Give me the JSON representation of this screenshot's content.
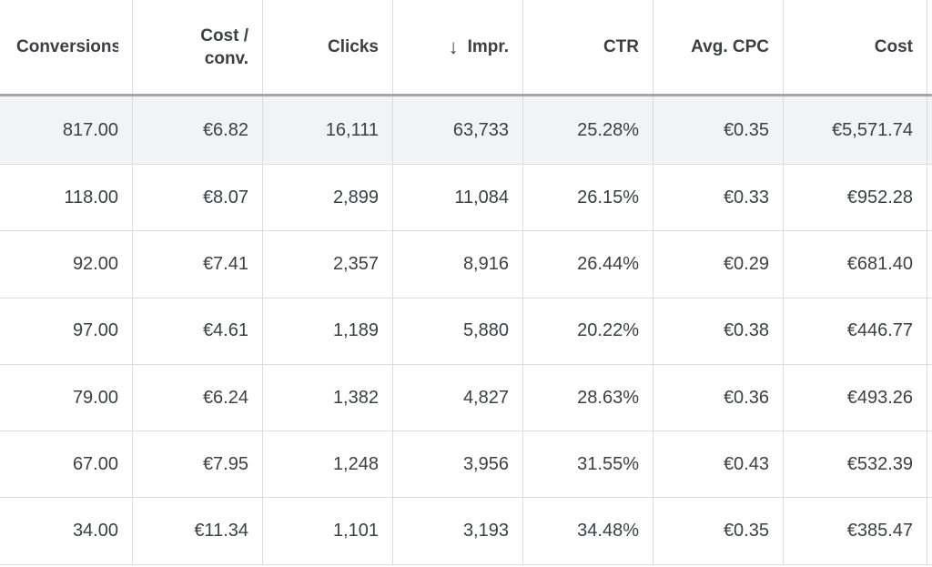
{
  "table": {
    "headers": {
      "conversions": "Conversions",
      "cost_per_conv_line1": "Cost /",
      "cost_per_conv_line2": "conv.",
      "clicks": "Clicks",
      "impr": "Impr.",
      "ctr": "CTR",
      "avg_cpc": "Avg. CPC",
      "cost": "Cost"
    },
    "sort_icon": "arrow-down-icon",
    "sort_glyph": "↓",
    "rows": [
      {
        "conversions": "817.00",
        "cost_per_conv": "€6.82",
        "clicks": "16,111",
        "impr": "63,733",
        "ctr": "25.28%",
        "avg_cpc": "€0.35",
        "cost": "€5,571.74"
      },
      {
        "conversions": "118.00",
        "cost_per_conv": "€8.07",
        "clicks": "2,899",
        "impr": "11,084",
        "ctr": "26.15%",
        "avg_cpc": "€0.33",
        "cost": "€952.28"
      },
      {
        "conversions": "92.00",
        "cost_per_conv": "€7.41",
        "clicks": "2,357",
        "impr": "8,916",
        "ctr": "26.44%",
        "avg_cpc": "€0.29",
        "cost": "€681.40"
      },
      {
        "conversions": "97.00",
        "cost_per_conv": "€4.61",
        "clicks": "1,189",
        "impr": "5,880",
        "ctr": "20.22%",
        "avg_cpc": "€0.38",
        "cost": "€446.77"
      },
      {
        "conversions": "79.00",
        "cost_per_conv": "€6.24",
        "clicks": "1,382",
        "impr": "4,827",
        "ctr": "28.63%",
        "avg_cpc": "€0.36",
        "cost": "€493.26"
      },
      {
        "conversions": "67.00",
        "cost_per_conv": "€7.95",
        "clicks": "1,248",
        "impr": "3,956",
        "ctr": "31.55%",
        "avg_cpc": "€0.43",
        "cost": "€532.39"
      },
      {
        "conversions": "34.00",
        "cost_per_conv": "€11.34",
        "clicks": "1,101",
        "impr": "3,193",
        "ctr": "34.48%",
        "avg_cpc": "€0.35",
        "cost": "€385.47"
      }
    ]
  }
}
